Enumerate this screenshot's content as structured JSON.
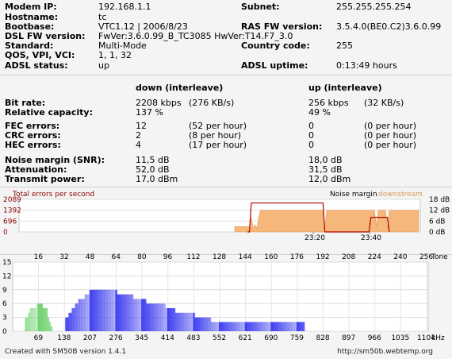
{
  "info": {
    "left": [
      {
        "label": "Modem IP:",
        "value": "192.168.1.1"
      },
      {
        "label": "Hostname:",
        "value": "tc"
      },
      {
        "label": "Bootbase:",
        "value": "VTC1.12 | 2006/8/23"
      },
      {
        "label": "DSL FW version:",
        "value": " FwVer:3.6.0.99_B_TC3085 HwVer:T14.F7_3.0"
      },
      {
        "label": "Standard:",
        "value": "Multi-Mode"
      },
      {
        "label": "QOS, VPI, VCI:",
        "value": "1, 1, 32"
      },
      {
        "label": "ADSL status:",
        "value": "up"
      }
    ],
    "right": [
      {
        "label": "Subnet:",
        "value": "255.255.255.254"
      },
      {
        "label": "RAS FW version:",
        "value": "3.5.4.0(BE0.C2)3.6.0.99"
      },
      {
        "label": "Country code:",
        "value": "255"
      },
      {
        "label": "ADSL uptime:",
        "value": "0:13:49 hours"
      }
    ]
  },
  "stats": {
    "down_header": "down (interleave)",
    "up_header": "up (interleave)",
    "rows": [
      {
        "label": "Bit rate:",
        "down": "2208 kbps",
        "down2": "(276 KB/s)",
        "up": "256 kbps",
        "up2": "(32 KB/s)"
      },
      {
        "label": "Relative capacity:",
        "down": "137 %",
        "down2": "",
        "up": "49 %",
        "up2": ""
      },
      {
        "label": "FEC errors:",
        "down": "12",
        "down2": "(52 per hour)",
        "up": "0",
        "up2": "(0 per hour)"
      },
      {
        "label": "CRC errors:",
        "down": "2",
        "down2": "(8 per hour)",
        "up": "0",
        "up2": "(0 per hour)"
      },
      {
        "label": "HEC errors:",
        "down": "4",
        "down2": "(17 per hour)",
        "up": "0",
        "up2": "(0 per hour)"
      },
      {
        "label": "Noise margin (SNR):",
        "down": "11,5 dB",
        "down2": "",
        "up": "18,0 dB",
        "up2": ""
      },
      {
        "label": "Attenuation:",
        "down": "52,0 dB",
        "down2": "",
        "up": "31,5 dB",
        "up2": ""
      },
      {
        "label": "Transmit power:",
        "down": "17,0 dBm",
        "down2": "",
        "up": "12,0 dBm",
        "up2": ""
      }
    ]
  },
  "chart_data": [
    {
      "type": "area",
      "title": "",
      "left_label": "Total errors per second",
      "legend": [
        "Noise margin",
        "downstream"
      ],
      "y_left_ticks": [
        "2089",
        "1392",
        "696",
        "0"
      ],
      "y_right_ticks": [
        "18 dB",
        "12 dB",
        "6 dB",
        "0 dB"
      ],
      "x_ticks": [
        "23:20",
        "23:40"
      ],
      "colors": {
        "errors": "#8b0000",
        "noise_line": "#b00000",
        "downstream": "#f5b77a"
      },
      "noise_margin_db": [
        [
          0,
          3
        ],
        [
          8,
          3
        ],
        [
          9,
          8
        ],
        [
          10,
          2
        ],
        [
          11,
          4
        ],
        [
          12,
          2
        ],
        [
          13,
          8
        ],
        [
          14,
          12
        ],
        [
          20,
          12
        ],
        [
          22,
          12
        ],
        [
          24,
          12
        ],
        [
          36,
          12
        ],
        [
          38,
          12
        ],
        [
          42,
          12
        ],
        [
          46,
          12
        ],
        [
          48,
          12
        ],
        [
          49,
          2
        ],
        [
          50,
          12
        ],
        [
          74,
          12
        ],
        [
          76,
          12
        ],
        [
          77,
          3
        ],
        [
          78,
          12
        ],
        [
          82,
          12
        ],
        [
          83,
          2
        ],
        [
          84,
          12
        ],
        [
          100,
          12
        ]
      ],
      "error_line": [
        [
          7,
          0
        ],
        [
          8,
          0
        ],
        [
          9,
          16
        ],
        [
          11,
          16
        ],
        [
          42,
          16
        ],
        [
          48,
          16
        ],
        [
          49,
          0
        ],
        [
          73,
          0
        ],
        [
          74,
          8
        ],
        [
          76,
          8
        ],
        [
          77,
          8
        ],
        [
          80,
          8
        ],
        [
          82,
          8
        ],
        [
          83,
          8
        ],
        [
          84,
          0
        ]
      ]
    },
    {
      "type": "bar",
      "title": "",
      "x_top_label": "Tone",
      "x_top_ticks": [
        "16",
        "32",
        "48",
        "64",
        "80",
        "96",
        "112",
        "128",
        "144",
        "160",
        "176",
        "192",
        "208",
        "224",
        "240",
        "256"
      ],
      "x_bottom_label": "kHz",
      "x_bottom_ticks": [
        "69",
        "138",
        "207",
        "276",
        "345",
        "414",
        "483",
        "552",
        "621",
        "690",
        "759",
        "828",
        "897",
        "966",
        "1035",
        "1104"
      ],
      "y_ticks": [
        "15",
        "12",
        "9",
        "6",
        "3",
        "0"
      ],
      "ylim": [
        0,
        15
      ],
      "bands": [
        {
          "name": "upstream",
          "color_light": "#d8f5d0",
          "color_dark": "#6ad06a",
          "bins": [
            [
              1,
              0
            ],
            [
              2,
              0
            ],
            [
              3,
              0
            ],
            [
              4,
              0
            ],
            [
              5,
              0
            ],
            [
              6,
              0
            ],
            [
              7,
              0
            ],
            [
              8,
              3
            ],
            [
              9,
              3
            ],
            [
              10,
              4
            ],
            [
              11,
              5
            ],
            [
              12,
              5
            ],
            [
              13,
              5
            ],
            [
              14,
              5
            ],
            [
              15,
              6
            ],
            [
              16,
              6
            ],
            [
              17,
              6
            ],
            [
              18,
              6
            ],
            [
              19,
              5
            ],
            [
              20,
              5
            ],
            [
              21,
              5
            ],
            [
              22,
              3
            ],
            [
              23,
              2
            ],
            [
              24,
              1
            ]
          ]
        },
        {
          "name": "downstream",
          "color_light": "#e0e0ff",
          "color_dark": "#3a3af0",
          "bins": [
            [
              33,
              3
            ],
            [
              34,
              3
            ],
            [
              35,
              4
            ],
            [
              36,
              4
            ],
            [
              37,
              5
            ],
            [
              38,
              5
            ],
            [
              39,
              6
            ],
            [
              40,
              6
            ],
            [
              41,
              7
            ],
            [
              42,
              7
            ],
            [
              43,
              7
            ],
            [
              44,
              7
            ],
            [
              45,
              8
            ],
            [
              46,
              8
            ],
            [
              47,
              8
            ],
            [
              48,
              9
            ],
            [
              49,
              9
            ],
            [
              50,
              9
            ],
            [
              51,
              9
            ],
            [
              52,
              9
            ],
            [
              53,
              9
            ],
            [
              54,
              9
            ],
            [
              55,
              9
            ],
            [
              56,
              9
            ],
            [
              57,
              9
            ],
            [
              58,
              9
            ],
            [
              59,
              9
            ],
            [
              60,
              9
            ],
            [
              61,
              9
            ],
            [
              62,
              9
            ],
            [
              63,
              9
            ],
            [
              64,
              9
            ],
            [
              65,
              8
            ],
            [
              66,
              8
            ],
            [
              67,
              8
            ],
            [
              68,
              8
            ],
            [
              69,
              8
            ],
            [
              70,
              8
            ],
            [
              71,
              8
            ],
            [
              72,
              8
            ],
            [
              73,
              8
            ],
            [
              74,
              8
            ],
            [
              75,
              7
            ],
            [
              76,
              7
            ],
            [
              77,
              7
            ],
            [
              78,
              7
            ],
            [
              79,
              7
            ],
            [
              80,
              7
            ],
            [
              81,
              7
            ],
            [
              82,
              7
            ],
            [
              83,
              6
            ],
            [
              84,
              6
            ],
            [
              85,
              6
            ],
            [
              86,
              6
            ],
            [
              87,
              6
            ],
            [
              88,
              6
            ],
            [
              89,
              6
            ],
            [
              90,
              6
            ],
            [
              91,
              6
            ],
            [
              92,
              6
            ],
            [
              93,
              6
            ],
            [
              94,
              6
            ],
            [
              95,
              5
            ],
            [
              96,
              5
            ],
            [
              97,
              5
            ],
            [
              98,
              5
            ],
            [
              99,
              5
            ],
            [
              100,
              5
            ],
            [
              101,
              4
            ],
            [
              102,
              4
            ],
            [
              103,
              4
            ],
            [
              104,
              4
            ],
            [
              105,
              4
            ],
            [
              106,
              4
            ],
            [
              107,
              4
            ],
            [
              108,
              4
            ],
            [
              109,
              4
            ],
            [
              110,
              4
            ],
            [
              111,
              4
            ],
            [
              112,
              4
            ],
            [
              113,
              3
            ],
            [
              114,
              3
            ],
            [
              115,
              3
            ],
            [
              116,
              3
            ],
            [
              117,
              3
            ],
            [
              118,
              3
            ],
            [
              119,
              3
            ],
            [
              120,
              3
            ],
            [
              121,
              3
            ],
            [
              122,
              3
            ],
            [
              123,
              2
            ],
            [
              124,
              2
            ],
            [
              125,
              2
            ],
            [
              126,
              2
            ],
            [
              127,
              2
            ],
            [
              128,
              2
            ],
            [
              129,
              2
            ],
            [
              130,
              2
            ],
            [
              131,
              2
            ],
            [
              132,
              2
            ],
            [
              133,
              2
            ],
            [
              134,
              2
            ],
            [
              135,
              2
            ],
            [
              136,
              2
            ],
            [
              137,
              2
            ],
            [
              138,
              2
            ],
            [
              139,
              2
            ],
            [
              140,
              2
            ],
            [
              141,
              2
            ],
            [
              142,
              2
            ],
            [
              143,
              2
            ],
            [
              144,
              2
            ],
            [
              145,
              2
            ],
            [
              146,
              2
            ],
            [
              147,
              2
            ],
            [
              148,
              2
            ],
            [
              149,
              2
            ],
            [
              150,
              2
            ],
            [
              151,
              2
            ],
            [
              152,
              2
            ],
            [
              153,
              2
            ],
            [
              154,
              2
            ],
            [
              155,
              2
            ],
            [
              156,
              2
            ],
            [
              157,
              2
            ],
            [
              158,
              2
            ],
            [
              159,
              2
            ],
            [
              160,
              2
            ],
            [
              161,
              2
            ],
            [
              162,
              2
            ],
            [
              163,
              2
            ],
            [
              164,
              2
            ],
            [
              165,
              2
            ],
            [
              166,
              2
            ],
            [
              167,
              2
            ],
            [
              168,
              2
            ],
            [
              169,
              2
            ],
            [
              170,
              2
            ],
            [
              171,
              2
            ],
            [
              172,
              2
            ],
            [
              173,
              2
            ],
            [
              174,
              2
            ],
            [
              175,
              2
            ],
            [
              176,
              2
            ],
            [
              177,
              2
            ],
            [
              178,
              2
            ],
            [
              179,
              2
            ],
            [
              180,
              2
            ]
          ]
        }
      ]
    }
  ],
  "footer": {
    "left": "Created with SM50B version 1.4.1",
    "right": "http://sm50b.webtemp.org"
  }
}
